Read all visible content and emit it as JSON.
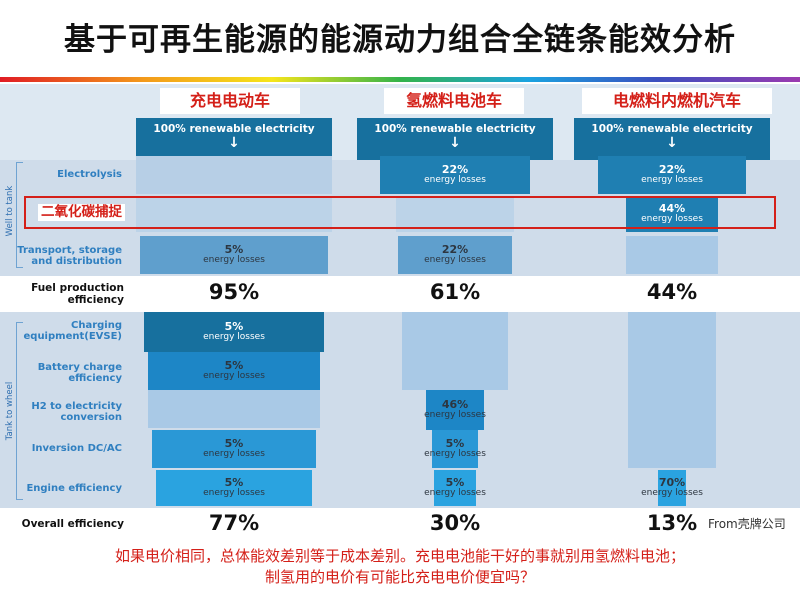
{
  "title": "基于可再生能源的能源动力组合全链条能效分析",
  "vehicles": [
    "充电电动车",
    "氢燃料电池车",
    "电燃料内燃机汽车"
  ],
  "top_label": "100% renewable electricity",
  "top_arrow": "↓",
  "side_labels": {
    "upstream": "Well to tank",
    "downstream": "Tank to wheel"
  },
  "rows": {
    "electrolysis": "Electrolysis",
    "transport": "Transport, storage and distribution",
    "fuel_eff": "Fuel production efficiency",
    "charging": "Charging equipment(EVSE)",
    "battery": "Battery charge efficiency",
    "h2conv": "H2 to electricity conversion",
    "inversion": "Inversion DC/AC",
    "engine": "Engine efficiency",
    "overall": "Overall efficiency"
  },
  "loss_text": "energy losses",
  "co2_label": "二氧化碳捕捉",
  "ev": {
    "transport": "5%",
    "fuel_eff": "95%",
    "charging": "5%",
    "battery": "5%",
    "inversion": "5%",
    "engine": "5%",
    "overall": "77%"
  },
  "fcev": {
    "electrolysis": "22%",
    "transport": "22%",
    "fuel_eff": "61%",
    "h2conv": "46%",
    "inversion": "5%",
    "engine": "5%",
    "overall": "30%"
  },
  "efuel": {
    "electrolysis": "22%",
    "co2": "44%",
    "fuel_eff": "44%",
    "engine": "70%",
    "overall": "13%"
  },
  "credit": "From壳牌公司",
  "caption": [
    "如果电价相同，总体能效差别等于成本差别。充电电池能干好的事就别用氢燃料电池；",
    "制氢用的电价有可能比充电电价便宜吗？"
  ],
  "colors": {
    "dark_blue": "#17709e",
    "mid_blue": "#1f8ac9",
    "light_blue": "#a9c9e6",
    "accent_red": "#d42019"
  }
}
